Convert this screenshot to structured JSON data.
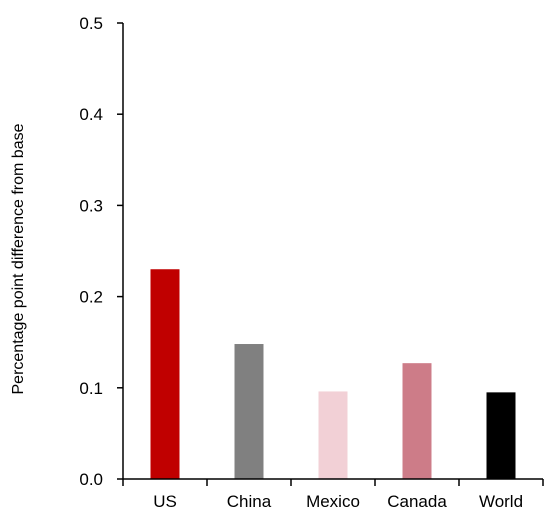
{
  "chart_data": {
    "type": "bar",
    "categories": [
      "US",
      "China",
      "Mexico",
      "Canada",
      "World"
    ],
    "values": [
      0.23,
      0.148,
      0.096,
      0.127,
      0.095
    ],
    "colors": [
      "#C00000",
      "#808080",
      "#F2D0D6",
      "#CD7C88",
      "#000000"
    ],
    "ylabel": "Percentage point difference from base",
    "xlabel": "",
    "title": "",
    "ylim": [
      0.0,
      0.5
    ],
    "yticks": [
      0.0,
      0.1,
      0.2,
      0.3,
      0.4,
      0.5
    ],
    "ytick_labels": [
      "0.0",
      "0.1",
      "0.2",
      "0.3",
      "0.4",
      "0.5"
    ],
    "grid": false,
    "legend": "none"
  }
}
